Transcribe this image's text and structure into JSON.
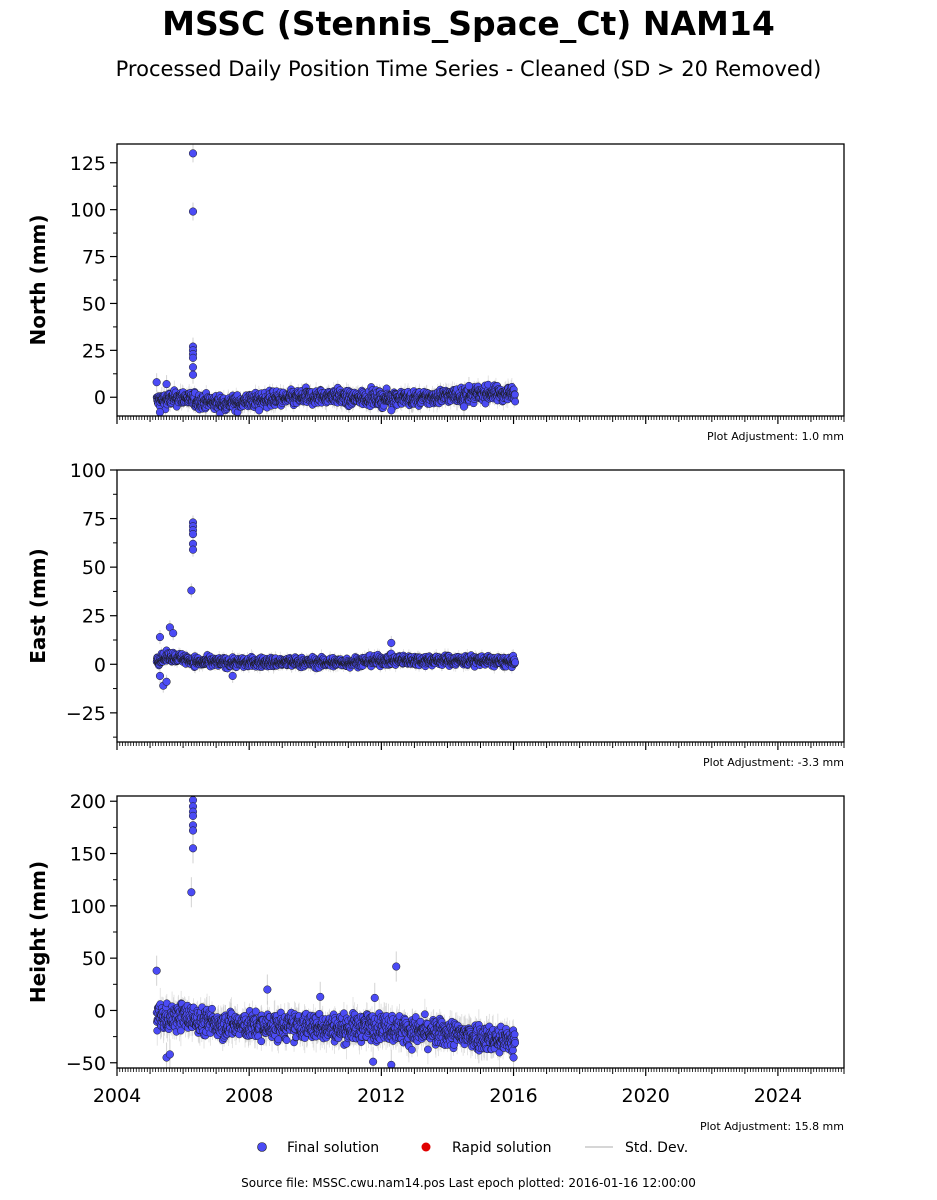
{
  "title": "MSSC (Stennis_Space_Ct) NAM14",
  "subtitle": "Processed Daily Position Time Series - Cleaned (SD > 20 Removed)",
  "footer": "Source file: MSSC.cwu.nam14.pos  Last epoch plotted: 2016-01-16 12:00:00",
  "colors": {
    "final": "#4b4bf5",
    "rapid": "#e00000",
    "stddev": "#c8c8c8",
    "marker_edge": "#1a1a1a"
  },
  "legend": {
    "final": "Final solution",
    "rapid": "Rapid solution",
    "stddev": "Std. Dev."
  },
  "chart_data": [
    {
      "type": "scatter",
      "ylabel": "North (mm)",
      "adjustment": "Plot Adjustment: 1.0 mm",
      "xlim": [
        2004,
        2026
      ],
      "ylim": [
        -10,
        135
      ],
      "yticks": [
        0,
        25,
        50,
        75,
        100,
        125
      ],
      "yminor_step": 12.5,
      "base": [
        [
          2005.2,
          -2
        ],
        [
          2005.6,
          -1
        ],
        [
          2006.0,
          0
        ],
        [
          2006.4,
          -2
        ],
        [
          2007.0,
          -3
        ],
        [
          2007.6,
          -3
        ],
        [
          2008.0,
          -2
        ],
        [
          2008.6,
          -1
        ],
        [
          2009.0,
          -1
        ],
        [
          2009.6,
          0
        ],
        [
          2010.0,
          0
        ],
        [
          2010.6,
          1
        ],
        [
          2011.0,
          -1
        ],
        [
          2011.6,
          0
        ],
        [
          2012.0,
          -1
        ],
        [
          2012.6,
          0
        ],
        [
          2013.0,
          -1
        ],
        [
          2013.6,
          0
        ],
        [
          2014.0,
          1
        ],
        [
          2014.6,
          1
        ],
        [
          2015.0,
          2
        ],
        [
          2015.6,
          2
        ],
        [
          2016.05,
          2
        ]
      ],
      "spread": 2.8,
      "stddev_spread": 4,
      "start": 2005.2,
      "end": 2016.05,
      "outliers": [
        [
          2006.3,
          130
        ],
        [
          2006.3,
          99
        ],
        [
          2006.3,
          27
        ],
        [
          2006.3,
          25
        ],
        [
          2006.3,
          23
        ],
        [
          2006.3,
          21
        ],
        [
          2006.3,
          16
        ],
        [
          2006.3,
          12
        ],
        [
          2005.2,
          8
        ],
        [
          2005.5,
          7
        ],
        [
          2012.3,
          -7
        ],
        [
          2014.5,
          -5
        ],
        [
          2014.65,
          6
        ],
        [
          2008.3,
          -7
        ],
        [
          2005.3,
          -8
        ]
      ]
    },
    {
      "type": "scatter",
      "ylabel": "East (mm)",
      "adjustment": "Plot Adjustment: -3.3 mm",
      "xlim": [
        2004,
        2026
      ],
      "ylim": [
        -40,
        100
      ],
      "yticks": [
        -25,
        0,
        25,
        50,
        75,
        100
      ],
      "yminor_step": 12.5,
      "base": [
        [
          2005.2,
          2
        ],
        [
          2005.6,
          4
        ],
        [
          2006.0,
          3
        ],
        [
          2006.5,
          1
        ],
        [
          2007.0,
          1
        ],
        [
          2008.0,
          1
        ],
        [
          2009.0,
          1
        ],
        [
          2010.0,
          1
        ],
        [
          2011.0,
          1
        ],
        [
          2012.0,
          2
        ],
        [
          2013.0,
          2
        ],
        [
          2014.0,
          2
        ],
        [
          2015.0,
          2
        ],
        [
          2016.05,
          1
        ]
      ],
      "spread": 1.8,
      "stddev_spread": 3,
      "start": 2005.2,
      "end": 2016.05,
      "outliers": [
        [
          2006.3,
          73
        ],
        [
          2006.3,
          71
        ],
        [
          2006.3,
          69
        ],
        [
          2006.3,
          67
        ],
        [
          2006.3,
          62
        ],
        [
          2006.3,
          59
        ],
        [
          2006.25,
          38
        ],
        [
          2005.6,
          19
        ],
        [
          2005.7,
          16
        ],
        [
          2005.3,
          14
        ],
        [
          2005.3,
          -6
        ],
        [
          2005.4,
          -11
        ],
        [
          2005.5,
          -9
        ],
        [
          2012.3,
          11
        ],
        [
          2007.5,
          -6
        ]
      ]
    },
    {
      "type": "scatter",
      "ylabel": "Height (mm)",
      "adjustment": "Plot Adjustment: 15.8 mm",
      "xlim": [
        2004,
        2026
      ],
      "ylim": [
        -55,
        205
      ],
      "yticks": [
        -50,
        0,
        50,
        100,
        150,
        200
      ],
      "yminor_step": 25,
      "xticks": [
        2004,
        2008,
        2012,
        2016,
        2020,
        2024
      ],
      "base": [
        [
          2005.2,
          -5
        ],
        [
          2005.6,
          -8
        ],
        [
          2006.0,
          -5
        ],
        [
          2006.5,
          -10
        ],
        [
          2007.0,
          -12
        ],
        [
          2008.0,
          -15
        ],
        [
          2009.0,
          -15
        ],
        [
          2010.0,
          -15
        ],
        [
          2011.0,
          -17
        ],
        [
          2012.0,
          -15
        ],
        [
          2013.0,
          -20
        ],
        [
          2014.0,
          -22
        ],
        [
          2015.0,
          -25
        ],
        [
          2016.05,
          -30
        ]
      ],
      "spread": 9,
      "stddev_spread": 12,
      "start": 2005.2,
      "end": 2016.05,
      "outliers": [
        [
          2006.3,
          201
        ],
        [
          2006.3,
          195
        ],
        [
          2006.3,
          190
        ],
        [
          2006.3,
          186
        ],
        [
          2006.3,
          177
        ],
        [
          2006.3,
          172
        ],
        [
          2006.3,
          155
        ],
        [
          2006.25,
          113
        ],
        [
          2005.2,
          38
        ],
        [
          2012.45,
          42
        ],
        [
          2008.55,
          20
        ],
        [
          2010.15,
          13
        ],
        [
          2011.8,
          12
        ],
        [
          2005.5,
          -45
        ],
        [
          2005.6,
          -42
        ],
        [
          2011.75,
          -49
        ],
        [
          2012.3,
          -52
        ],
        [
          2016.0,
          -45
        ]
      ]
    }
  ]
}
